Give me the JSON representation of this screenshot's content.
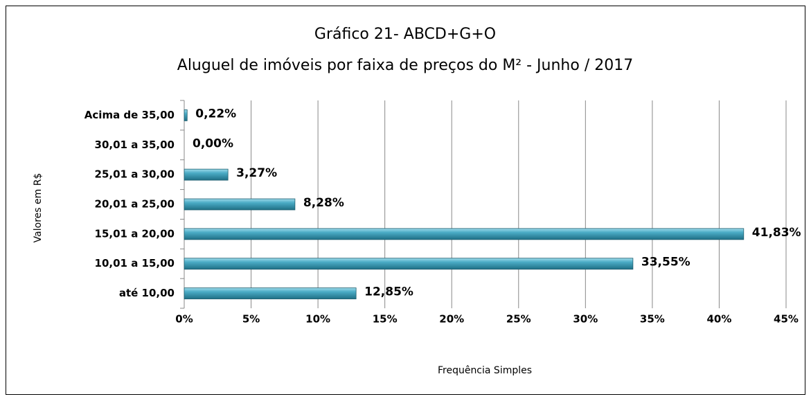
{
  "chart_data": {
    "type": "bar",
    "orientation": "horizontal",
    "title": "Gráfico 21- ABCD+G+O",
    "subtitle": "Aluguel de imóveis por faixa de preços do M² -  Junho / 2017",
    "xlabel": "Frequência Simples",
    "ylabel": "Valores em R$",
    "categories": [
      "Acima de 35,00",
      "30,01 a 35,00",
      "25,01 a 30,00",
      "20,01 a 25,00",
      "15,01 a 20,00",
      "10,01 a 15,00",
      "até 10,00"
    ],
    "values": [
      0.22,
      0,
      3.27,
      8.28,
      41.83,
      33.55,
      12.85
    ],
    "value_labels": [
      "0,22%",
      "0,00%",
      "3,27%",
      "8,28%",
      "41,83%",
      "33,55%",
      "12,85%"
    ],
    "color": "#4bacc6",
    "xlim": [
      0,
      45
    ],
    "xticks": [
      {
        "value": 0,
        "label": "0%"
      },
      {
        "value": 5,
        "label": "5%"
      },
      {
        "value": 10,
        "label": "10%"
      },
      {
        "value": 15,
        "label": "15%"
      },
      {
        "value": 20,
        "label": "20%"
      },
      {
        "value": 25,
        "label": "25%"
      },
      {
        "value": 30,
        "label": "30%"
      },
      {
        "value": 35,
        "label": "35%"
      },
      {
        "value": 40,
        "label": "40%"
      },
      {
        "value": 45,
        "label": "45%"
      }
    ],
    "grid": true
  }
}
